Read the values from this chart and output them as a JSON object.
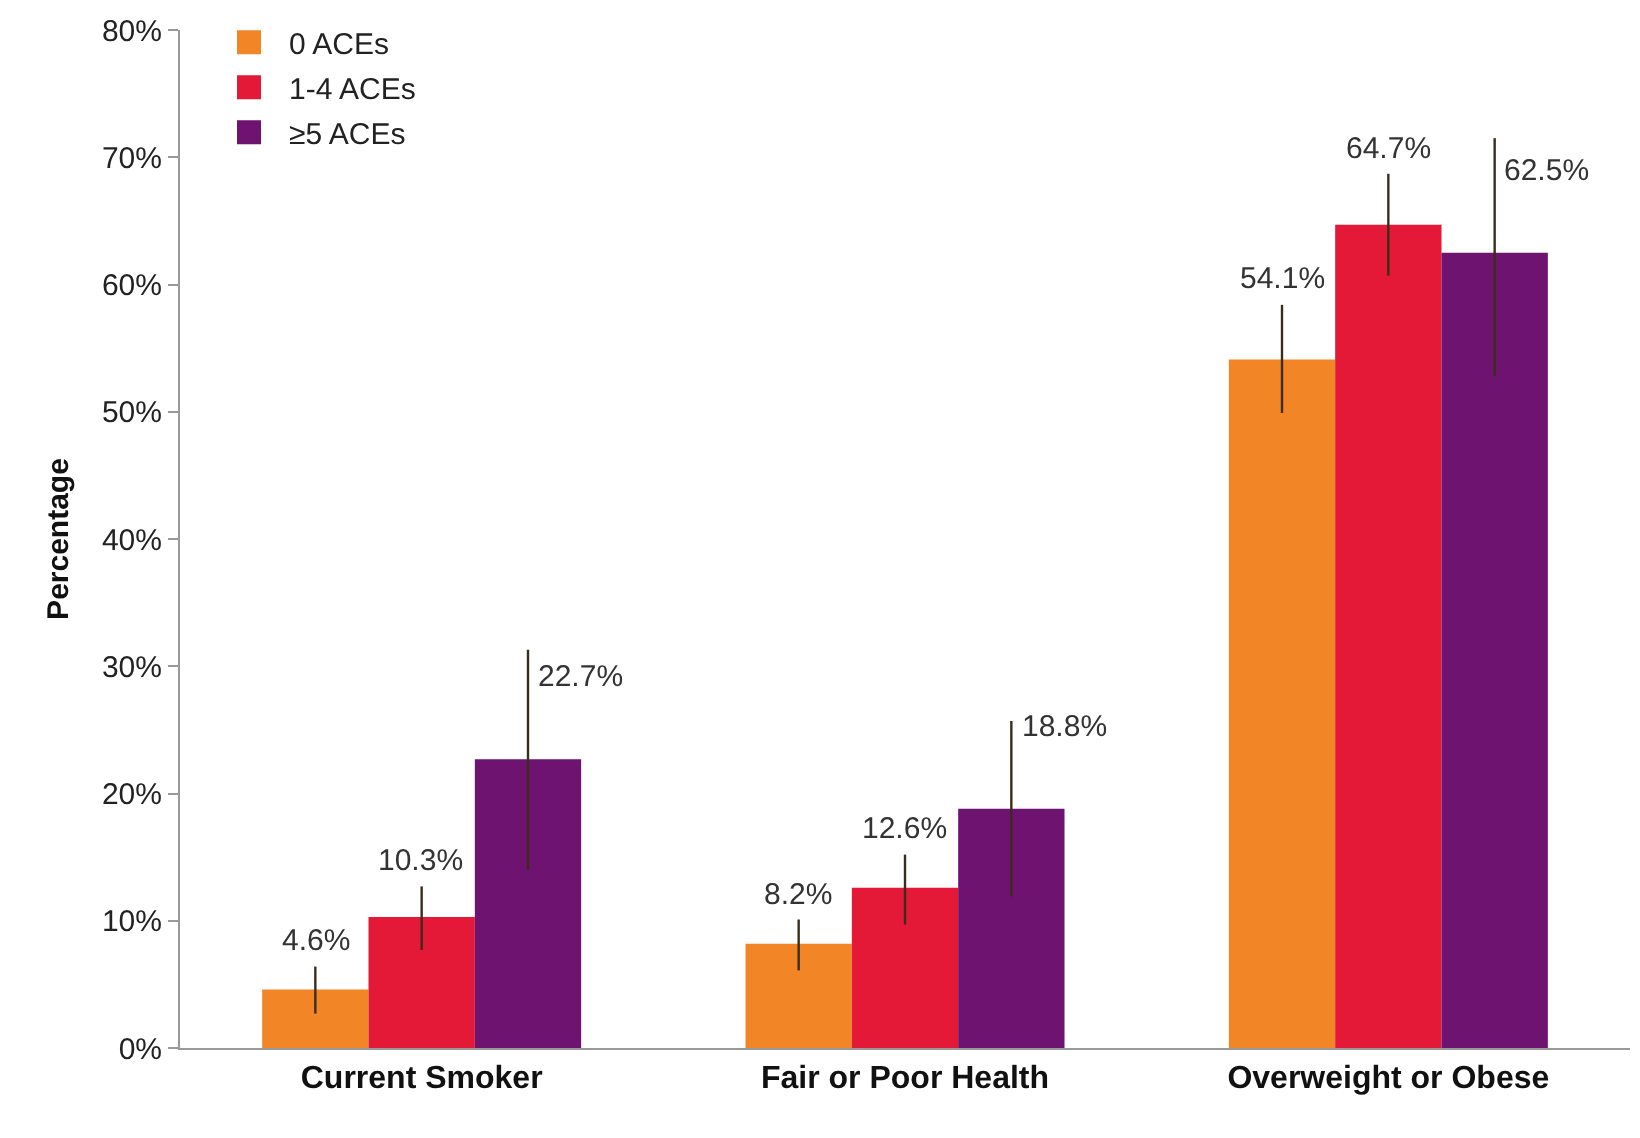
{
  "chart_data": {
    "type": "bar",
    "ylabel": "Percentage",
    "categories": [
      "Current Smoker",
      "Fair or Poor Health",
      "Overweight or Obese"
    ],
    "series": [
      {
        "name": "0 ACEs",
        "color": "#f28627",
        "values": [
          4.6,
          8.2,
          54.1
        ],
        "value_labels": [
          "4.6%",
          "8.2%",
          "54.1%"
        ],
        "errors": [
          [
            2.7,
            6.4
          ],
          [
            6.1,
            10.1
          ],
          [
            49.9,
            58.4
          ]
        ]
      },
      {
        "name": "1-4 ACEs",
        "color": "#e31937",
        "values": [
          10.3,
          12.6,
          64.7
        ],
        "value_labels": [
          "10.3%",
          "12.6%",
          "64.7%"
        ],
        "errors": [
          [
            7.7,
            12.7
          ],
          [
            9.7,
            15.2
          ],
          [
            60.7,
            68.7
          ]
        ]
      },
      {
        "name": "≥5 ACEs",
        "color": "#6e1370",
        "values": [
          22.7,
          18.8,
          62.5
        ],
        "value_labels": [
          "22.7%",
          "18.8%",
          "62.5%"
        ],
        "errors": [
          [
            14.0,
            31.3
          ],
          [
            11.9,
            25.7
          ],
          [
            52.8,
            71.5
          ]
        ]
      }
    ],
    "ylim": [
      0,
      80
    ],
    "yticks": [
      {
        "value": 0,
        "label": "0%"
      },
      {
        "value": 10,
        "label": "10%"
      },
      {
        "value": 20,
        "label": "20%"
      },
      {
        "value": 30,
        "label": "30%"
      },
      {
        "value": 40,
        "label": "40%"
      },
      {
        "value": 50,
        "label": "50%"
      },
      {
        "value": 60,
        "label": "60%"
      },
      {
        "value": 70,
        "label": "70%"
      },
      {
        "value": 80,
        "label": "80%"
      }
    ],
    "grid": false,
    "legend": "top left"
  }
}
